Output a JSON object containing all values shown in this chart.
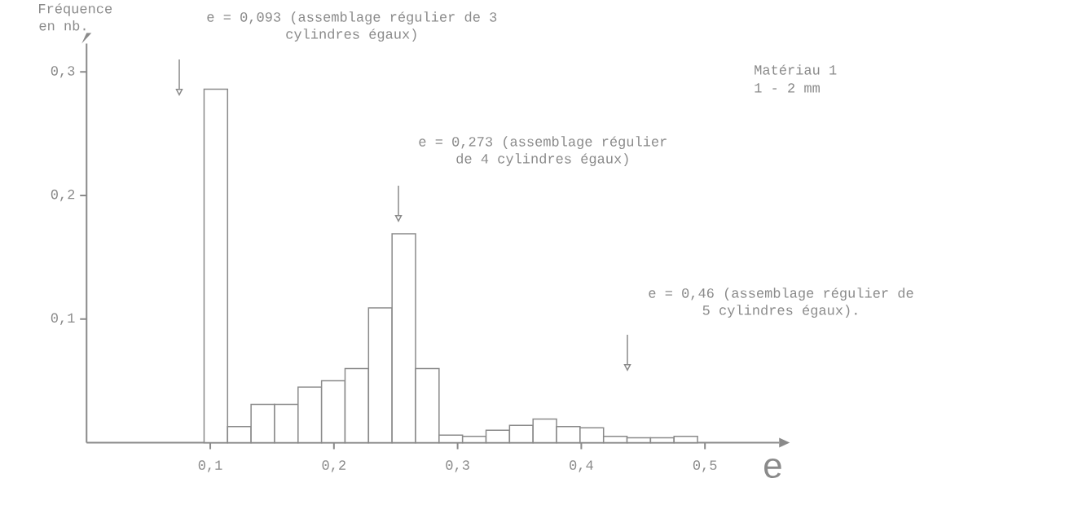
{
  "chart_data": {
    "type": "histogram",
    "xlabel": "e",
    "ylabel": "Fréquence en nb.",
    "color": "#8a8a8a",
    "bins": [
      0.095,
      0.114,
      0.133,
      0.152,
      0.171,
      0.19,
      0.209,
      0.228,
      0.247,
      0.266,
      0.285,
      0.304,
      0.323,
      0.342,
      0.361,
      0.38,
      0.399,
      0.418,
      0.437,
      0.456,
      0.475,
      0.494
    ],
    "values": [
      0.286,
      0.013,
      0.031,
      0.031,
      0.045,
      0.05,
      0.06,
      0.109,
      0.169,
      0.06,
      0.006,
      0.005,
      0.01,
      0.014,
      0.019,
      0.013,
      0.012,
      0.005,
      0.004,
      0.004,
      0.005
    ],
    "xlim": [
      0,
      0.56
    ],
    "ylim": [
      0,
      0.323
    ],
    "xticks": [
      {
        "value": 0.1,
        "label": "0,1"
      },
      {
        "value": 0.2,
        "label": "0,2"
      },
      {
        "value": 0.3,
        "label": "0,3"
      },
      {
        "value": 0.4,
        "label": "0,4"
      },
      {
        "value": 0.5,
        "label": "0,5"
      }
    ],
    "yticks": [
      {
        "value": 0.1,
        "label": "0,1"
      },
      {
        "value": 0.2,
        "label": "0,2"
      },
      {
        "value": 0.3,
        "label": "0,3"
      }
    ],
    "annotations": [
      "e = 0,093 (assemblage régulier de 3 cylindres égaux)",
      "e = 0,273 (assemblage régulier de 4 cylindres égaux)",
      "e = 0,46 (assemblage régulier de 5 cylindres égaux).",
      "Matériau 1",
      "1 - 2 mm"
    ]
  }
}
